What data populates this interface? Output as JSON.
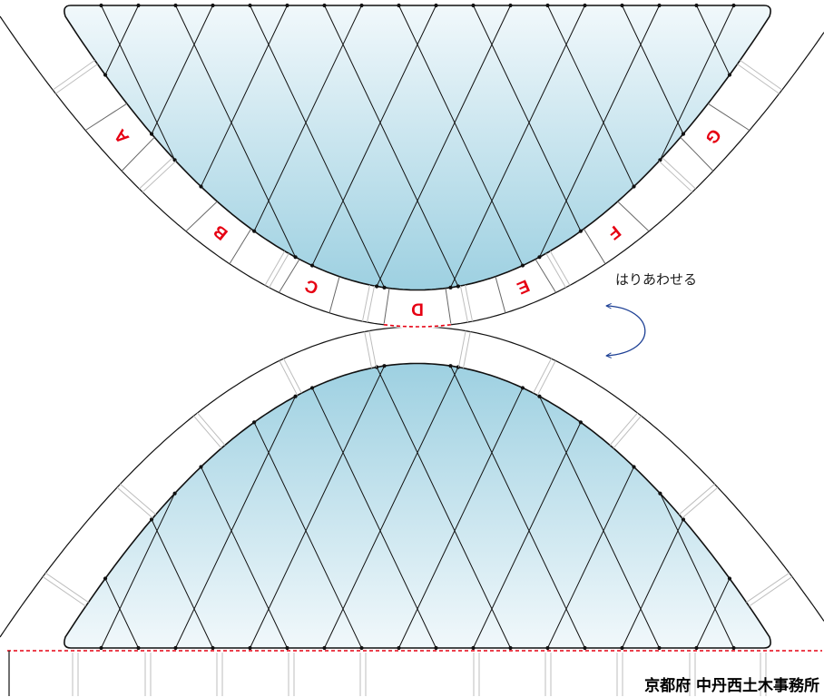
{
  "tab_labels": [
    "A",
    "B",
    "C",
    "D",
    "E",
    "F",
    "G"
  ],
  "instruction_text": "はりあわせる",
  "footer_text": "京都府 中丹西土木事務所",
  "icons": {
    "fold_arrow": "curved-double-arrow-icon"
  },
  "colors": {
    "glass_light": "#f1f8fb",
    "glass_deep": "#9dd0e1",
    "line_black": "#111111",
    "tab_gray": "#666666",
    "fold_gray": "#bdbdbd",
    "label_red": "#e60012",
    "cut_line_red": "#e60012",
    "arrow_blue": "#1c3f94"
  }
}
